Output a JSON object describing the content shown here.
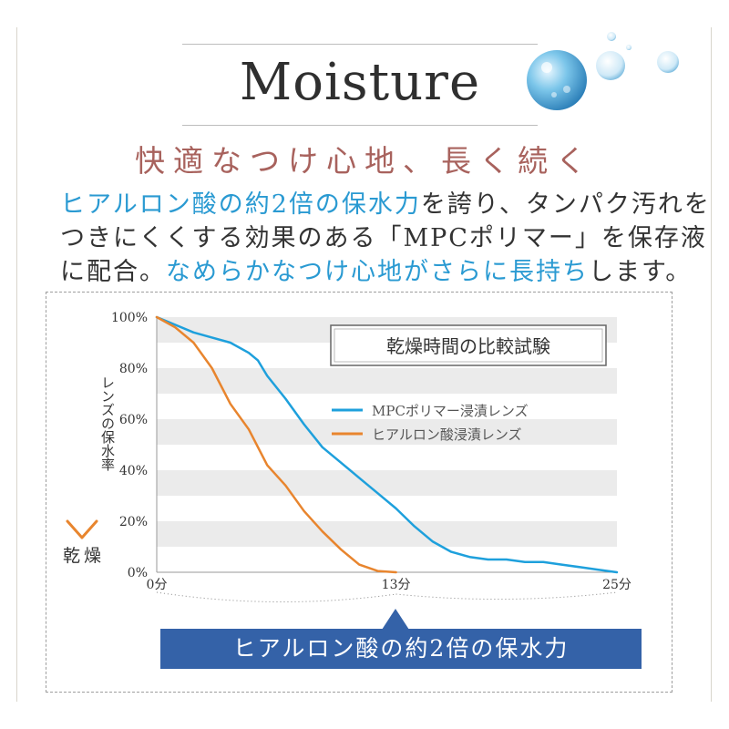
{
  "header": {
    "title": "Moisture",
    "subtitle": "快適なつけ心地、長く続く",
    "body": [
      [
        {
          "t": "ヒアルロン酸の約2倍の保水力",
          "hl": true
        },
        {
          "t": "を誇り、タンパク汚れを",
          "hl": false
        }
      ],
      [
        {
          "t": "つきにくくする効果のある「MPCポリマー」を保存液",
          "hl": false
        }
      ],
      [
        {
          "t": "に配合。",
          "hl": false
        },
        {
          "t": "なめらかなつけ心地がさらに長持ち",
          "hl": true
        },
        {
          "t": "します。",
          "hl": false
        }
      ]
    ]
  },
  "callout": {
    "text": "ヒアルロン酸の約2倍の保水力"
  },
  "chart_data": {
    "type": "line",
    "title": "乾燥時間の比較試験",
    "ylabel": "レンズの保水率",
    "ylabel_arrow_text": "乾燥",
    "ylim": [
      0,
      100
    ],
    "xlim": [
      0,
      25
    ],
    "y_ticks": [
      "100%",
      "80%",
      "60%",
      "40%",
      "20%",
      "0%"
    ],
    "x_ticks": [
      {
        "value": 0,
        "label": "0分"
      },
      {
        "value": 13,
        "label": "13分"
      },
      {
        "value": 25,
        "label": "25分"
      }
    ],
    "grid": "horizontal-bands",
    "legend_position": "top-right",
    "colors": {
      "mpc": "#1ea0dc",
      "hyaluronic": "#e8852e",
      "arrow": "#e8852e",
      "callout": "#3462a8"
    },
    "series": [
      {
        "name": "MPCポリマー浸漬レンズ",
        "color": "#1ea0dc",
        "points": [
          [
            0,
            100
          ],
          [
            1,
            97
          ],
          [
            2,
            94
          ],
          [
            3,
            92
          ],
          [
            4,
            90
          ],
          [
            5,
            86
          ],
          [
            5.5,
            83
          ],
          [
            6,
            77
          ],
          [
            7,
            68
          ],
          [
            8,
            58
          ],
          [
            9,
            49
          ],
          [
            10,
            43
          ],
          [
            11,
            37
          ],
          [
            12,
            31
          ],
          [
            13,
            25
          ],
          [
            14,
            18
          ],
          [
            15,
            12
          ],
          [
            16,
            8
          ],
          [
            17,
            6
          ],
          [
            18,
            5
          ],
          [
            19,
            5
          ],
          [
            20,
            4
          ],
          [
            21,
            4
          ],
          [
            22,
            3
          ],
          [
            23,
            2
          ],
          [
            24,
            1
          ],
          [
            25,
            0
          ]
        ]
      },
      {
        "name": "ヒアルロン酸浸漬レンズ",
        "color": "#e8852e",
        "points": [
          [
            0,
            100
          ],
          [
            1,
            96
          ],
          [
            2,
            90
          ],
          [
            3,
            80
          ],
          [
            4,
            66
          ],
          [
            5,
            56
          ],
          [
            6,
            42
          ],
          [
            7,
            34
          ],
          [
            8,
            24
          ],
          [
            9,
            16
          ],
          [
            10,
            9
          ],
          [
            11,
            3
          ],
          [
            12,
            0.5
          ],
          [
            13,
            0
          ]
        ]
      }
    ]
  }
}
